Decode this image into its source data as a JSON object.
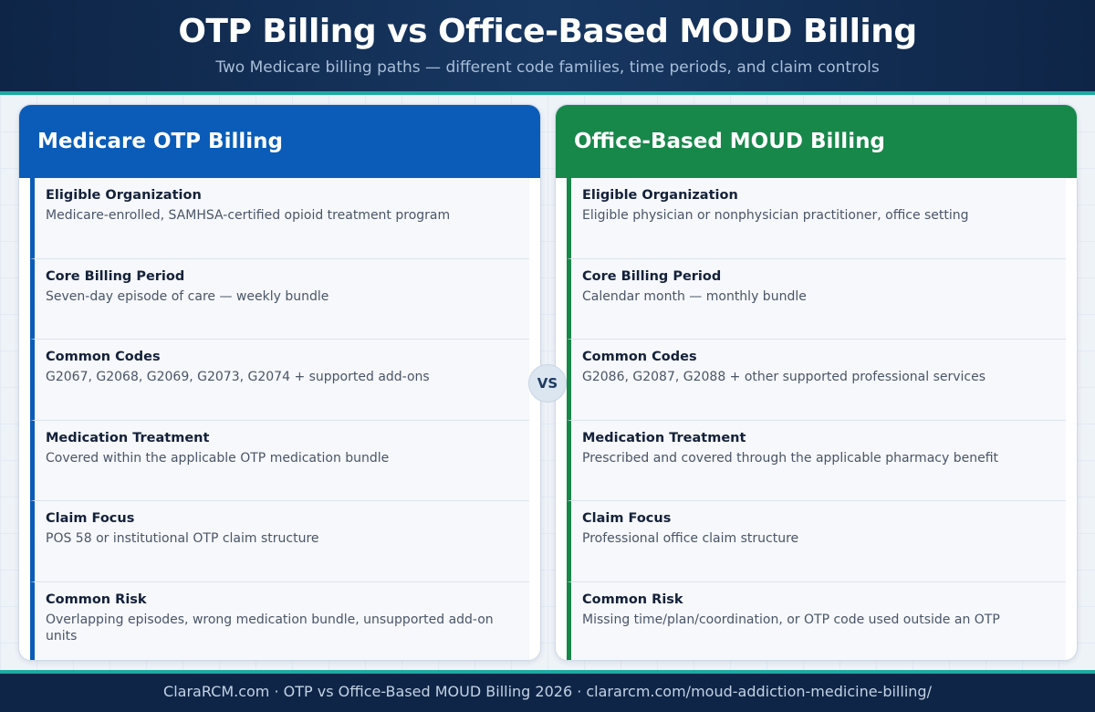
{
  "header": {
    "title": "OTP Billing vs Office-Based MOUD Billing",
    "subtitle": "Two Medicare billing paths — different code families, time periods, and claim controls"
  },
  "vs_label": "VS",
  "colors": {
    "otp_accent": "#0a5cb8",
    "office_accent": "#17874a",
    "header_bg": "#0e2547",
    "teal_rule": "#1fa9a2"
  },
  "left_panel": {
    "title": "Medicare OTP Billing",
    "rows": [
      {
        "label": "Eligible Organization",
        "value": "Medicare-enrolled, SAMHSA-certified opioid treatment program"
      },
      {
        "label": "Core Billing Period",
        "value": "Seven-day episode of care — weekly bundle"
      },
      {
        "label": "Common Codes",
        "value": "G2067, G2068, G2069, G2073, G2074 + supported add-ons"
      },
      {
        "label": "Medication Treatment",
        "value": "Covered within the applicable OTP medication bundle"
      },
      {
        "label": "Claim Focus",
        "value": "POS 58 or institutional OTP claim structure"
      },
      {
        "label": "Common Risk",
        "value": "Overlapping episodes, wrong medication bundle, unsupported add-on units"
      }
    ]
  },
  "right_panel": {
    "title": "Office-Based MOUD Billing",
    "rows": [
      {
        "label": "Eligible Organization",
        "value": "Eligible physician or nonphysician practitioner, office setting"
      },
      {
        "label": "Core Billing Period",
        "value": "Calendar month — monthly bundle"
      },
      {
        "label": "Common Codes",
        "value": "G2086, G2087, G2088 + other supported professional services"
      },
      {
        "label": "Medication Treatment",
        "value": "Prescribed and covered through the applicable pharmacy benefit"
      },
      {
        "label": "Claim Focus",
        "value": "Professional office claim structure"
      },
      {
        "label": "Common Risk",
        "value": "Missing time/plan/coordination, or OTP code used outside an OTP"
      }
    ]
  },
  "footer": {
    "text": "ClaraRCM.com · OTP vs Office-Based MOUD Billing 2026 · clararcm.com/moud-addiction-medicine-billing/"
  }
}
